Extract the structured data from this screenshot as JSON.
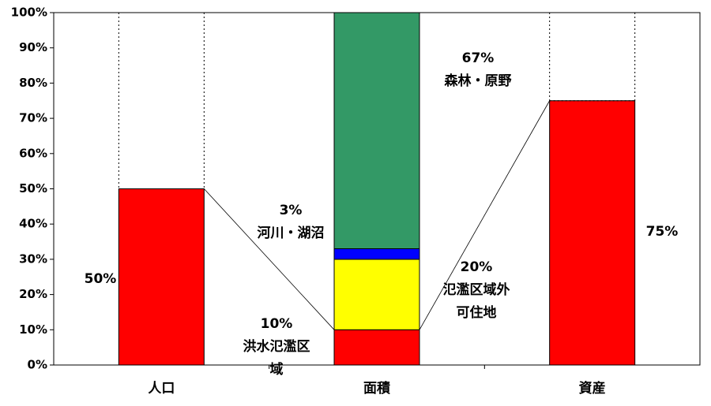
{
  "chart_data": {
    "type": "stacked_bar",
    "categories": [
      "人口",
      "面積",
      "資産"
    ],
    "series": [
      {
        "name": "洪水氾濫区域",
        "color": "#ff0000",
        "values": [
          50,
          10,
          75
        ],
        "value_labels": [
          "50%",
          "10%",
          "75%"
        ]
      },
      {
        "name": "氾濫区域外可住地",
        "color": "#ffff00",
        "values": [
          null,
          20,
          null
        ],
        "value_labels": [
          null,
          "20%",
          null
        ]
      },
      {
        "name": "河川・湖沼",
        "color": "#0000ff",
        "values": [
          null,
          3,
          null
        ],
        "value_labels": [
          null,
          "3%",
          null
        ]
      },
      {
        "name": "森林・原野",
        "color": "#339966",
        "values": [
          null,
          67,
          null
        ],
        "value_labels": [
          null,
          "67%",
          null
        ]
      }
    ],
    "ylim": [
      0,
      100
    ],
    "yticks": [
      {
        "value": 0,
        "label": "0%"
      },
      {
        "value": 10,
        "label": "10%"
      },
      {
        "value": 20,
        "label": "20%"
      },
      {
        "value": 30,
        "label": "30%"
      },
      {
        "value": 40,
        "label": "40%"
      },
      {
        "value": 50,
        "label": "50%"
      },
      {
        "value": 60,
        "label": "60%"
      },
      {
        "value": 70,
        "label": "70%"
      },
      {
        "value": 80,
        "label": "80%"
      },
      {
        "value": 90,
        "label": "90%"
      },
      {
        "value": 100,
        "label": "100%"
      }
    ]
  }
}
